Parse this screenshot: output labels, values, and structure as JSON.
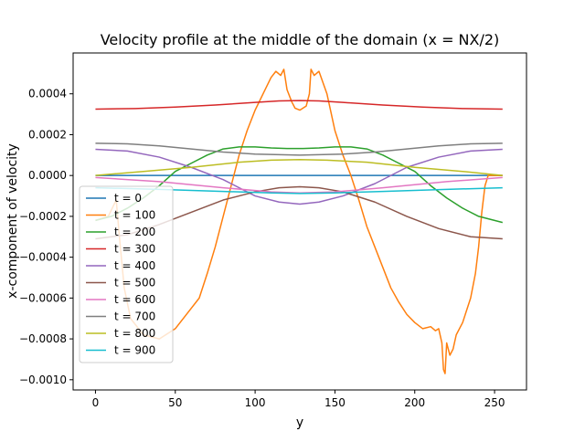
{
  "chart_data": {
    "type": "line",
    "title": "Velocity profile at the middle of the domain (x = NX/2)",
    "xlabel": "y",
    "ylabel": "x-component of velocity",
    "xlim": [
      -14,
      270
    ],
    "ylim": [
      -0.00105,
      0.0006
    ],
    "x_ticks": [
      0,
      50,
      100,
      150,
      200,
      250
    ],
    "y_ticks": [
      -0.001,
      -0.0008,
      -0.0006,
      -0.0004,
      -0.0002,
      0.0,
      0.0002,
      0.0004
    ],
    "y_tick_labels": [
      "−0.0010",
      "−0.0008",
      "−0.0006",
      "−0.0004",
      "−0.0002",
      "0.0000",
      "0.0002",
      "0.0004"
    ],
    "grid": false,
    "legend_position": "lower-left",
    "series": [
      {
        "name": "t = 0",
        "color": "#1f77b4",
        "x": [
          0,
          255
        ],
        "y": [
          0,
          0
        ]
      },
      {
        "name": "t = 100",
        "color": "#ff7f0e",
        "x": [
          0,
          8,
          13,
          15,
          18,
          22,
          30,
          40,
          50,
          60,
          65,
          70,
          75,
          80,
          85,
          90,
          95,
          100,
          105,
          110,
          113,
          116,
          118,
          120,
          123,
          125,
          128,
          132,
          134,
          135,
          137,
          140,
          145,
          150,
          155,
          160,
          165,
          170,
          175,
          180,
          185,
          190,
          195,
          200,
          205,
          210,
          213,
          215,
          217,
          218,
          219,
          220,
          222,
          224,
          226,
          230,
          235,
          238,
          240,
          242,
          244,
          246,
          247,
          248,
          255
        ],
        "y": [
          -0.00022,
          -0.0002,
          -0.00012,
          -0.0003,
          -0.00055,
          -0.0007,
          -0.00078,
          -0.0008,
          -0.00075,
          -0.00065,
          -0.0006,
          -0.00048,
          -0.00035,
          -0.0002,
          -5e-05,
          0.0001,
          0.00022,
          0.00032,
          0.0004,
          0.00048,
          0.00051,
          0.00049,
          0.00052,
          0.00042,
          0.00036,
          0.00033,
          0.00032,
          0.00034,
          0.0004,
          0.00052,
          0.00049,
          0.00051,
          0.0004,
          0.00022,
          0.0001,
          0.0,
          -0.00012,
          -0.00025,
          -0.00035,
          -0.00045,
          -0.00055,
          -0.00062,
          -0.00068,
          -0.00072,
          -0.00075,
          -0.00074,
          -0.00076,
          -0.00075,
          -0.00082,
          -0.00095,
          -0.00097,
          -0.00082,
          -0.00088,
          -0.00085,
          -0.00078,
          -0.00072,
          -0.0006,
          -0.00048,
          -0.00035,
          -0.00018,
          -5e-05,
          0.0,
          0.0,
          0.0,
          0.0
        ]
      },
      {
        "name": "t = 200",
        "color": "#2ca02c",
        "x": [
          0,
          10,
          20,
          30,
          40,
          50,
          60,
          70,
          80,
          90,
          100,
          110,
          120,
          130,
          140,
          150,
          160,
          170,
          180,
          190,
          200,
          210,
          220,
          230,
          240,
          250,
          255
        ],
        "y": [
          -0.00022,
          -0.0002,
          -0.00016,
          -0.00011,
          -5e-05,
          2e-05,
          6e-05,
          0.0001,
          0.00013,
          0.00014,
          0.00014,
          0.000135,
          0.000132,
          0.000132,
          0.000135,
          0.00014,
          0.00014,
          0.00013,
          0.0001,
          6e-05,
          2e-05,
          -5e-05,
          -0.00011,
          -0.00016,
          -0.0002,
          -0.00022,
          -0.00023
        ]
      },
      {
        "name": "t = 300",
        "color": "#d62728",
        "x": [
          0,
          25,
          50,
          75,
          100,
          115,
          128,
          140,
          155,
          180,
          205,
          230,
          255
        ],
        "y": [
          0.000325,
          0.000328,
          0.000335,
          0.000345,
          0.000358,
          0.000365,
          0.000367,
          0.000365,
          0.000358,
          0.000345,
          0.000335,
          0.000328,
          0.000325
        ]
      },
      {
        "name": "t = 400",
        "color": "#9467bd",
        "x": [
          0,
          20,
          40,
          60,
          80,
          100,
          115,
          128,
          140,
          155,
          175,
          195,
          215,
          235,
          255
        ],
        "y": [
          0.000128,
          0.00012,
          9e-05,
          4e-05,
          -2e-05,
          -0.0001,
          -0.00013,
          -0.00014,
          -0.00013,
          -0.0001,
          -4e-05,
          4e-05,
          9e-05,
          0.00012,
          0.000128
        ]
      },
      {
        "name": "t = 500",
        "color": "#8c564b",
        "x": [
          0,
          20,
          40,
          60,
          80,
          100,
          115,
          128,
          140,
          155,
          175,
          195,
          215,
          235,
          255
        ],
        "y": [
          -0.00031,
          -0.00029,
          -0.00024,
          -0.00018,
          -0.00012,
          -8e-05,
          -6e-05,
          -5.5e-05,
          -6e-05,
          -8e-05,
          -0.00013,
          -0.0002,
          -0.00026,
          -0.0003,
          -0.00031
        ]
      },
      {
        "name": "t = 600",
        "color": "#e377c2",
        "x": [
          0,
          40,
          80,
          110,
          128,
          150,
          180,
          220,
          255
        ],
        "y": [
          -1e-05,
          -3e-05,
          -6e-05,
          -8e-05,
          -8.5e-05,
          -8e-05,
          -6e-05,
          -3e-05,
          -1e-05
        ]
      },
      {
        "name": "t = 700",
        "color": "#7f7f7f",
        "x": [
          0,
          20,
          40,
          60,
          80,
          100,
          128,
          155,
          175,
          195,
          215,
          235,
          255
        ],
        "y": [
          0.000158,
          0.000155,
          0.000145,
          0.00013,
          0.000115,
          0.000105,
          0.0001,
          0.000105,
          0.000115,
          0.00013,
          0.000145,
          0.000155,
          0.000158
        ]
      },
      {
        "name": "t = 800",
        "color": "#bcbd22",
        "x": [
          0,
          30,
          60,
          90,
          110,
          128,
          145,
          170,
          200,
          230,
          255
        ],
        "y": [
          0.0,
          2e-05,
          4e-05,
          6.5e-05,
          7.5e-05,
          7.8e-05,
          7.5e-05,
          6.5e-05,
          4e-05,
          2e-05,
          0.0
        ]
      },
      {
        "name": "t = 900",
        "color": "#17becf",
        "x": [
          0,
          40,
          80,
          110,
          128,
          150,
          180,
          220,
          255
        ],
        "y": [
          -6e-05,
          -6.8e-05,
          -7.8e-05,
          -8.5e-05,
          -8.8e-05,
          -8.5e-05,
          -7.8e-05,
          -6.8e-05,
          -6e-05
        ]
      }
    ]
  }
}
